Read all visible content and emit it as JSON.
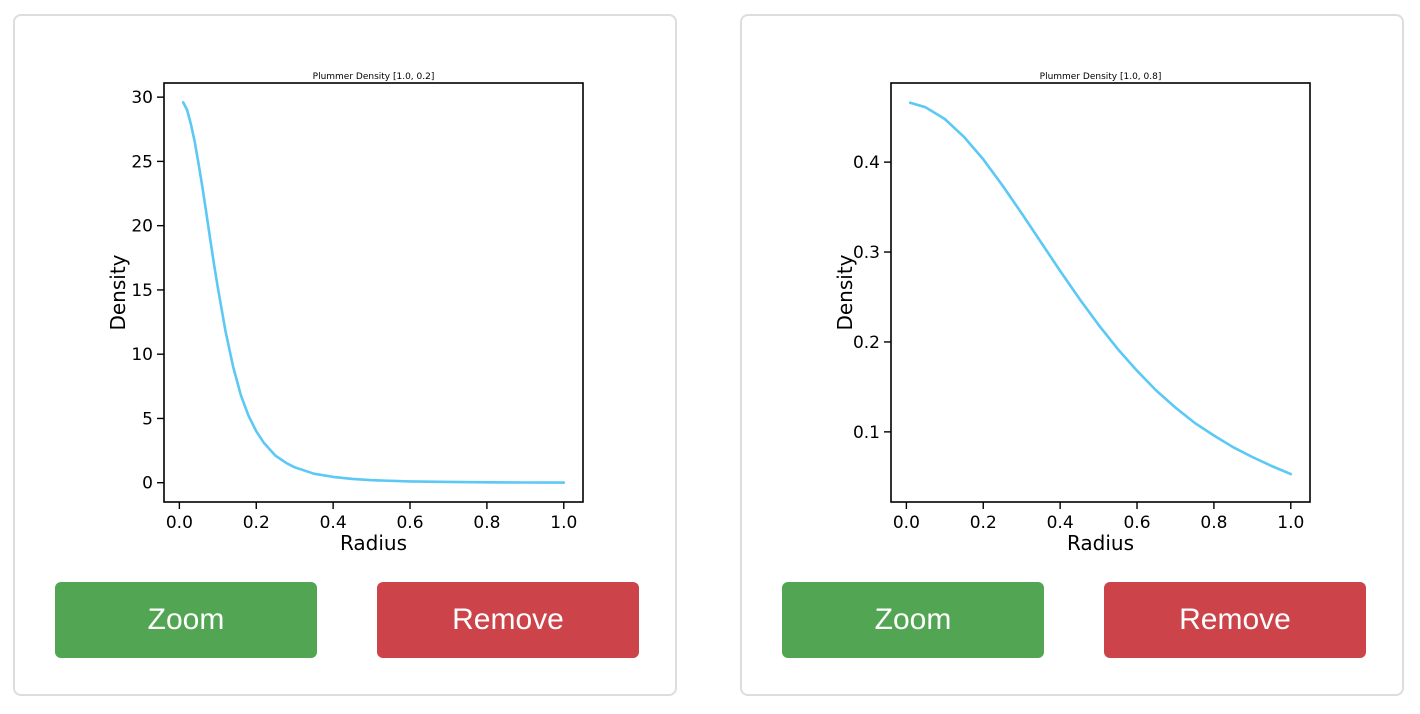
{
  "colors": {
    "line": "#5bc8f5",
    "zoom_button": "#52a552",
    "remove_button": "#cc434a"
  },
  "panels": [
    {
      "zoom_label": "Zoom",
      "remove_label": "Remove",
      "chart_data": {
        "type": "line",
        "title": "Plummer Density [1.0, 0.2]",
        "xlabel": "Radius",
        "ylabel": "Density",
        "xlim": [
          -0.04,
          1.05
        ],
        "ylim": [
          -1.5,
          31.1
        ],
        "xticks": [
          0.0,
          0.2,
          0.4,
          0.6,
          0.8,
          1.0
        ],
        "xtick_labels": [
          "0.0",
          "0.2",
          "0.4",
          "0.6",
          "0.8",
          "1.0"
        ],
        "yticks": [
          0,
          5,
          10,
          15,
          20,
          25,
          30
        ],
        "ytick_labels": [
          "0",
          "5",
          "10",
          "15",
          "20",
          "25",
          "30"
        ],
        "grid": false,
        "series": [
          {
            "x": [
              0.01,
              0.02,
              0.03,
              0.04,
              0.05,
              0.06,
              0.07,
              0.08,
              0.09,
              0.1,
              0.12,
              0.14,
              0.16,
              0.18,
              0.2,
              0.22,
              0.25,
              0.28,
              0.3,
              0.35,
              0.4,
              0.45,
              0.5,
              0.6,
              0.7,
              0.8,
              0.9,
              1.0
            ],
            "y": [
              29.6,
              29.0,
              27.9,
              26.5,
              24.8,
              23.0,
              21.0,
              19.0,
              17.0,
              15.2,
              11.8,
              9.0,
              6.8,
              5.2,
              4.0,
              3.1,
              2.1,
              1.5,
              1.2,
              0.7,
              0.45,
              0.3,
              0.2,
              0.1,
              0.06,
              0.03,
              0.02,
              0.01
            ]
          }
        ]
      }
    },
    {
      "zoom_label": "Zoom",
      "remove_label": "Remove",
      "chart_data": {
        "type": "line",
        "title": "Plummer Density [1.0, 0.8]",
        "xlabel": "Radius",
        "ylabel": "Density",
        "xlim": [
          -0.04,
          1.05
        ],
        "ylim": [
          0.022,
          0.488
        ],
        "xticks": [
          0.0,
          0.2,
          0.4,
          0.6,
          0.8,
          1.0
        ],
        "xtick_labels": [
          "0.0",
          "0.2",
          "0.4",
          "0.6",
          "0.8",
          "1.0"
        ],
        "yticks": [
          0.1,
          0.2,
          0.3,
          0.4
        ],
        "ytick_labels": [
          "0.1",
          "0.2",
          "0.3",
          "0.4"
        ],
        "grid": false,
        "series": [
          {
            "x": [
              0.01,
              0.05,
              0.1,
              0.15,
              0.2,
              0.25,
              0.3,
              0.35,
              0.4,
              0.45,
              0.5,
              0.55,
              0.6,
              0.65,
              0.7,
              0.75,
              0.8,
              0.85,
              0.9,
              0.95,
              1.0
            ],
            "y": [
              0.466,
              0.461,
              0.448,
              0.428,
              0.403,
              0.374,
              0.343,
              0.311,
              0.279,
              0.248,
              0.219,
              0.192,
              0.168,
              0.146,
              0.127,
              0.11,
              0.096,
              0.083,
              0.072,
              0.062,
              0.053
            ]
          }
        ]
      }
    }
  ]
}
